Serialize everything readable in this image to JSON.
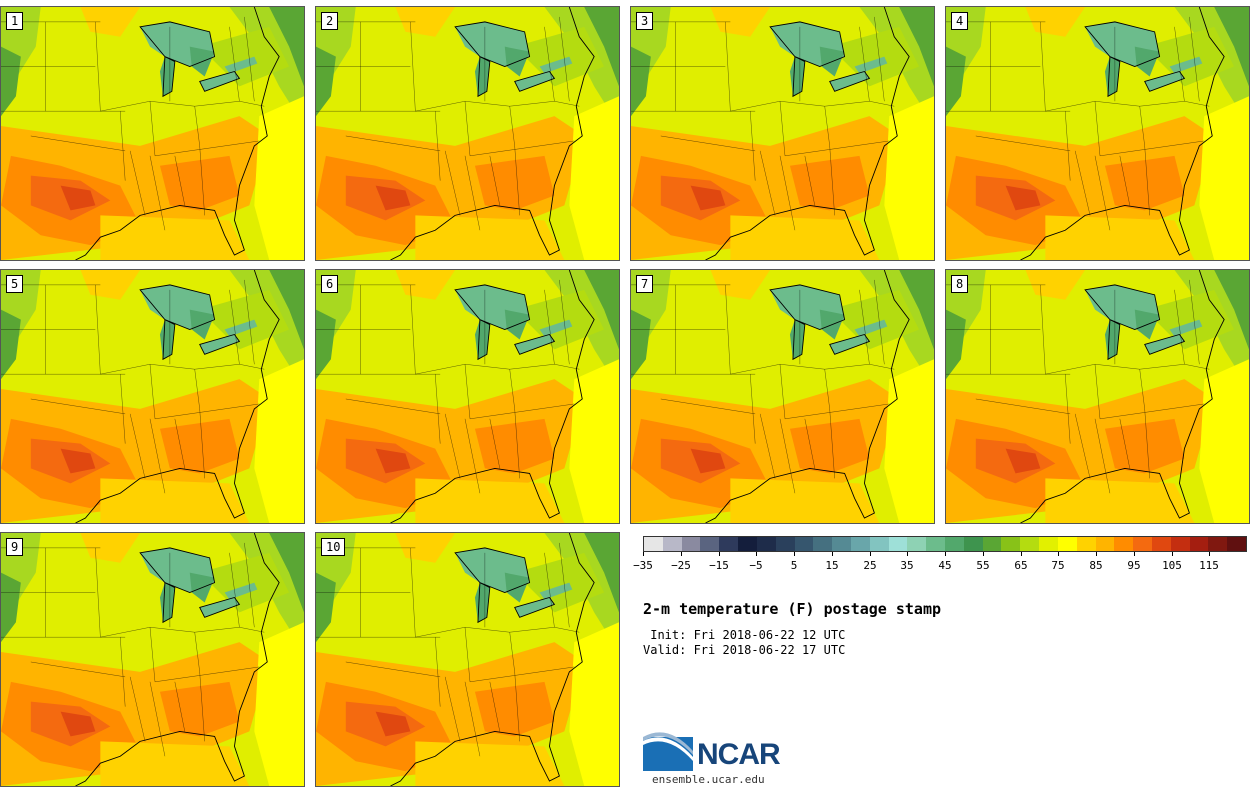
{
  "members": [
    "1",
    "2",
    "3",
    "4",
    "5",
    "6",
    "7",
    "8",
    "9",
    "10"
  ],
  "colorbar": {
    "colors": [
      "#e6e6e6",
      "#b8b8c8",
      "#8a8aa0",
      "#5a6480",
      "#2e3a5c",
      "#141e3c",
      "#1e2c4a",
      "#2a405c",
      "#36566e",
      "#457080",
      "#558a94",
      "#69a6aa",
      "#82c4c0",
      "#9ee0d8",
      "#8ed2b4",
      "#6cbc8c",
      "#52a86c",
      "#3e944e",
      "#5aa634",
      "#88c218",
      "#b4dc10",
      "#e2f000",
      "#ffff00",
      "#ffd200",
      "#ffb400",
      "#ff8c00",
      "#f46a10",
      "#e04810",
      "#c42e10",
      "#a41e10",
      "#801810",
      "#601010"
    ],
    "tick_labels": [
      "−35",
      "−25",
      "−15",
      "−5",
      "5",
      "15",
      "25",
      "35",
      "45",
      "55",
      "65",
      "75",
      "85",
      "95",
      "105",
      "115"
    ]
  },
  "title": "2-m temperature (F) postage stamp",
  "init": " Init: Fri 2018-06-22 12 UTC",
  "valid": "Valid: Fri 2018-06-22 17 UTC",
  "logo_text": "NCAR",
  "site": "ensemble.ucar.edu"
}
